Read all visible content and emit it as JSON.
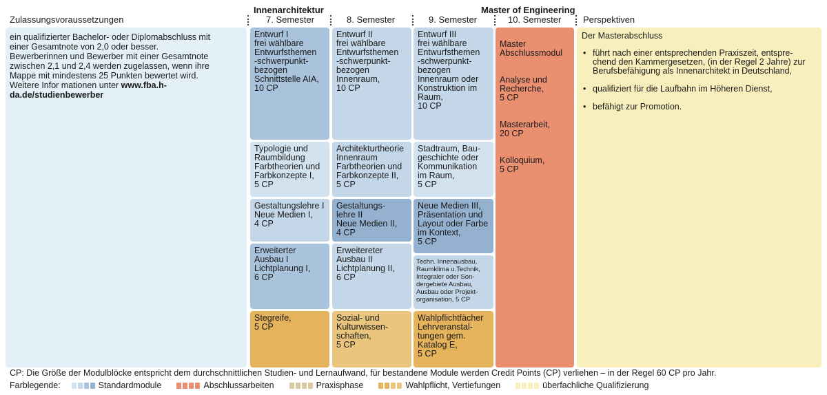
{
  "headers": {
    "admission": "Zulassungsvoraussetzungen",
    "interior_title": "Innenarchitektur",
    "master_title": "Master of Engineering",
    "sem7": "7. Semester",
    "sem8": "8. Semester",
    "sem9": "9. Semester",
    "sem10": "10. Semester",
    "perspectives": "Perspektiven"
  },
  "admission": {
    "text": "ein qualifizierter Bachelor- oder Diplomabschluss mit einer Gesamtnote von 2,0 oder besser. Bewerberinnen und Bewerber mit einer Gesamtnote zwischen 2,1 und 2,4 werden zugelassen, wenn ihre Mappe mit mindestens 25 Punkten bewertet wird. Weitere Infor mationen unter ",
    "link": "www.fba.h-da.de/studienbewerber"
  },
  "modules": {
    "s7": [
      "Entwurf I\nfrei wählbare\nEntwurfsthemen\n-schwerpunkt-\nbezogen\nSchnittstelle AIA,\n10 CP",
      "Typologie und\nRaumbildung\nFarbtheorien und\nFarbkonzepte I,\n5 CP",
      "Gestaltungslehre I\nNeue Medien I,\n4 CP",
      "Erweiterter\nAusbau I\nLichtplanung I,\n6 CP",
      "Stegreife,\n5 CP"
    ],
    "s8": [
      "Entwurf II\nfrei wählbare\nEntwurfsthemen\n-schwerpunkt-\nbezogen\nInnenraum,\n10 CP",
      "Architekturtheorie\nInnenraum\nFarbtheorien und\nFarbkonzepte II,\n5 CP",
      "Gestaltungs-\nlehre II\nNeue Medien II,\n4 CP",
      "Erweitereter\nAusbau II\nLichtplanung II,\n6 CP",
      "Sozial- und\nKulturwissen-\nschaften,\n5 CP"
    ],
    "s9": [
      "Entwurf III\nfrei wählbare\nEntwurfsthemen\n-schwerpunkt-\nbezogen\nInnenraum  oder\nKonstruktion im\nRaum,\n10 CP",
      "Stadtraum, Bau-\ngeschichte oder\nKommunikation\nim Raum,\n5 CP",
      "Neue Medien III,\nPräsentation und\nLayout oder Farbe\nim Kontext,\n5 CP",
      "Techn. Innenausbau,\nRaumklima u.Technik,\nIntegraler oder Son-\ndergebiete Ausbau,\nAusbau oder Projekt-\norganisation, 5 CP",
      "Wahlpflichtfächer\nLehrveranstal-\ntungen gem.\nKatalog E,\n5 CP"
    ],
    "s10": [
      "Master\nAbschlussmodul",
      "Analyse und\nRecherche,\n5 CP",
      "Masterarbeit,\n20 CP",
      "Kolloquium,\n5 CP"
    ]
  },
  "perspectives": {
    "title": "Der Masterabschluss",
    "items": [
      "führt nach einer entsprechenden Praxiszeit, entspre-\nchend den Kammergesetzen, (in der Regel 2 Jahre) zur\nBerufsbefähigung als Innenarchitekt in Deutschland,",
      "qualifiziert für die Laufbahn im Höheren Dienst,",
      "befähigt zur Promotion."
    ]
  },
  "footer": {
    "cp_note": "CP: Die Größe der Modulblöcke entspricht dem durchschnittlichen Studien- und Lernaufwand, für bestandene Module werden Credit Points (CP) verliehen – in der Regel 60 CP pro Jahr.",
    "legend_label": "Farblegende:",
    "legend": [
      {
        "label": "Standardmodule",
        "colors": [
          "#d2e2ef",
          "#c3d7e8",
          "#a9c3dc",
          "#94b1cf"
        ]
      },
      {
        "label": "Abschlussarbeiten",
        "colors": [
          "#ea8e70",
          "#ea8e70",
          "#ea8e70",
          "#ea8e70"
        ]
      },
      {
        "label": "Praxisphase",
        "colors": [
          "#d9c9a3",
          "#d9c9a3",
          "#d9c9a3",
          "#d9c9a3"
        ]
      },
      {
        "label": "Wahlpflicht, Vertiefungen",
        "colors": [
          "#e5b35c",
          "#e5b35c",
          "#e9c57d",
          "#e9c57d"
        ]
      },
      {
        "label": "überfachliche Qualifizierung",
        "colors": [
          "#f8efbd",
          "#f8efbd",
          "#f8efbd",
          "#f8efbd"
        ]
      }
    ]
  },
  "colors": {
    "admission_bg": "#e4f0f8",
    "perspectives_bg": "#f8efbd"
  }
}
